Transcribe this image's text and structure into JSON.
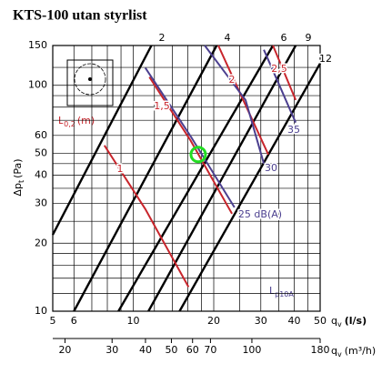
{
  "chart_data": {
    "type": "line",
    "title": "KTS-100 utan styrlist",
    "xscale": "log",
    "yscale": "log",
    "xlim": [
      5,
      50
    ],
    "ylim": [
      10,
      150
    ],
    "x2lim": [
      18,
      180
    ],
    "xticks": [
      5,
      6,
      10,
      20,
      30,
      40,
      50
    ],
    "x2ticks": [
      20,
      30,
      40,
      50,
      60,
      70,
      100,
      180
    ],
    "yticks": [
      10,
      20,
      30,
      40,
      50,
      60,
      100,
      150
    ],
    "xgrid": [
      5,
      6,
      7,
      8,
      9,
      10,
      12,
      14,
      16,
      18,
      20,
      25,
      30,
      35,
      40,
      45,
      50
    ],
    "ygrid": [
      10,
      12,
      14,
      16,
      18,
      20,
      25,
      30,
      35,
      40,
      45,
      50,
      60,
      70,
      80,
      90,
      100,
      120,
      150
    ],
    "xlabel": {
      "main": "q",
      "sub": "v",
      "unit": "(l/s)"
    },
    "x2label": {
      "main": "q",
      "sub": "v",
      "unit": "(m³/h)"
    },
    "ylabel": {
      "main": "Δp",
      "sub": "t",
      "unit": "(Pa)"
    },
    "throw_label": {
      "main": "L",
      "sub": "0,2",
      "unit": "(m)"
    },
    "sound_label": {
      "main": "L",
      "sub": "p10A"
    },
    "series": [
      {
        "name": "2",
        "color": "#000000",
        "x": [
          5,
          11.7
        ],
        "values": [
          21.8,
          150
        ]
      },
      {
        "name": "4",
        "color": "#000000",
        "x": [
          6,
          20.5
        ],
        "values": [
          10,
          150
        ]
      },
      {
        "name": "6",
        "color": "#000000",
        "x": [
          8.8,
          33.3
        ],
        "values": [
          10,
          150
        ]
      },
      {
        "name": "9",
        "color": "#000000",
        "x": [
          11.4,
          40.5
        ],
        "values": [
          10,
          150
        ]
      },
      {
        "name": "12",
        "color": "#000000",
        "x": [
          14.9,
          50
        ],
        "values": [
          10,
          125
        ]
      },
      {
        "name": "1",
        "color": "#c8252c",
        "x": [
          7.8,
          11.1,
          16.1
        ],
        "values": [
          54.2,
          28.3,
          12.8
        ]
      },
      {
        "name": "1,5",
        "color": "#c8252c",
        "x": [
          11.5,
          16.4,
          23.4
        ],
        "values": [
          108.7,
          56.8,
          27.0
        ]
      },
      {
        "name": "2",
        "color": "#c8252c",
        "x": [
          20.8,
          25.3,
          32.0
        ],
        "values": [
          150,
          90.3,
          49.4
        ]
      },
      {
        "name": "2,5",
        "color": "#c8252c",
        "x": [
          33.3,
          40.5
        ],
        "values": [
          150,
          86.1
        ]
      },
      {
        "name": "25 dB(A)",
        "color": "#4b3f8f",
        "x": [
          11.1,
          16.4,
          23.9
        ],
        "values": [
          119.4,
          59.4,
          28.8
        ]
      },
      {
        "name": "30",
        "color": "#4b3f8f",
        "x": [
          18.5,
          26.3,
          30.8
        ],
        "values": [
          150,
          86.1,
          45.0
        ]
      },
      {
        "name": "35",
        "color": "#4b3f8f",
        "x": [
          30.8,
          40.5
        ],
        "values": [
          143.6,
          68.4
        ]
      }
    ],
    "marker": {
      "x": 17.5,
      "y": 49.4,
      "color": "#22dd22"
    }
  }
}
